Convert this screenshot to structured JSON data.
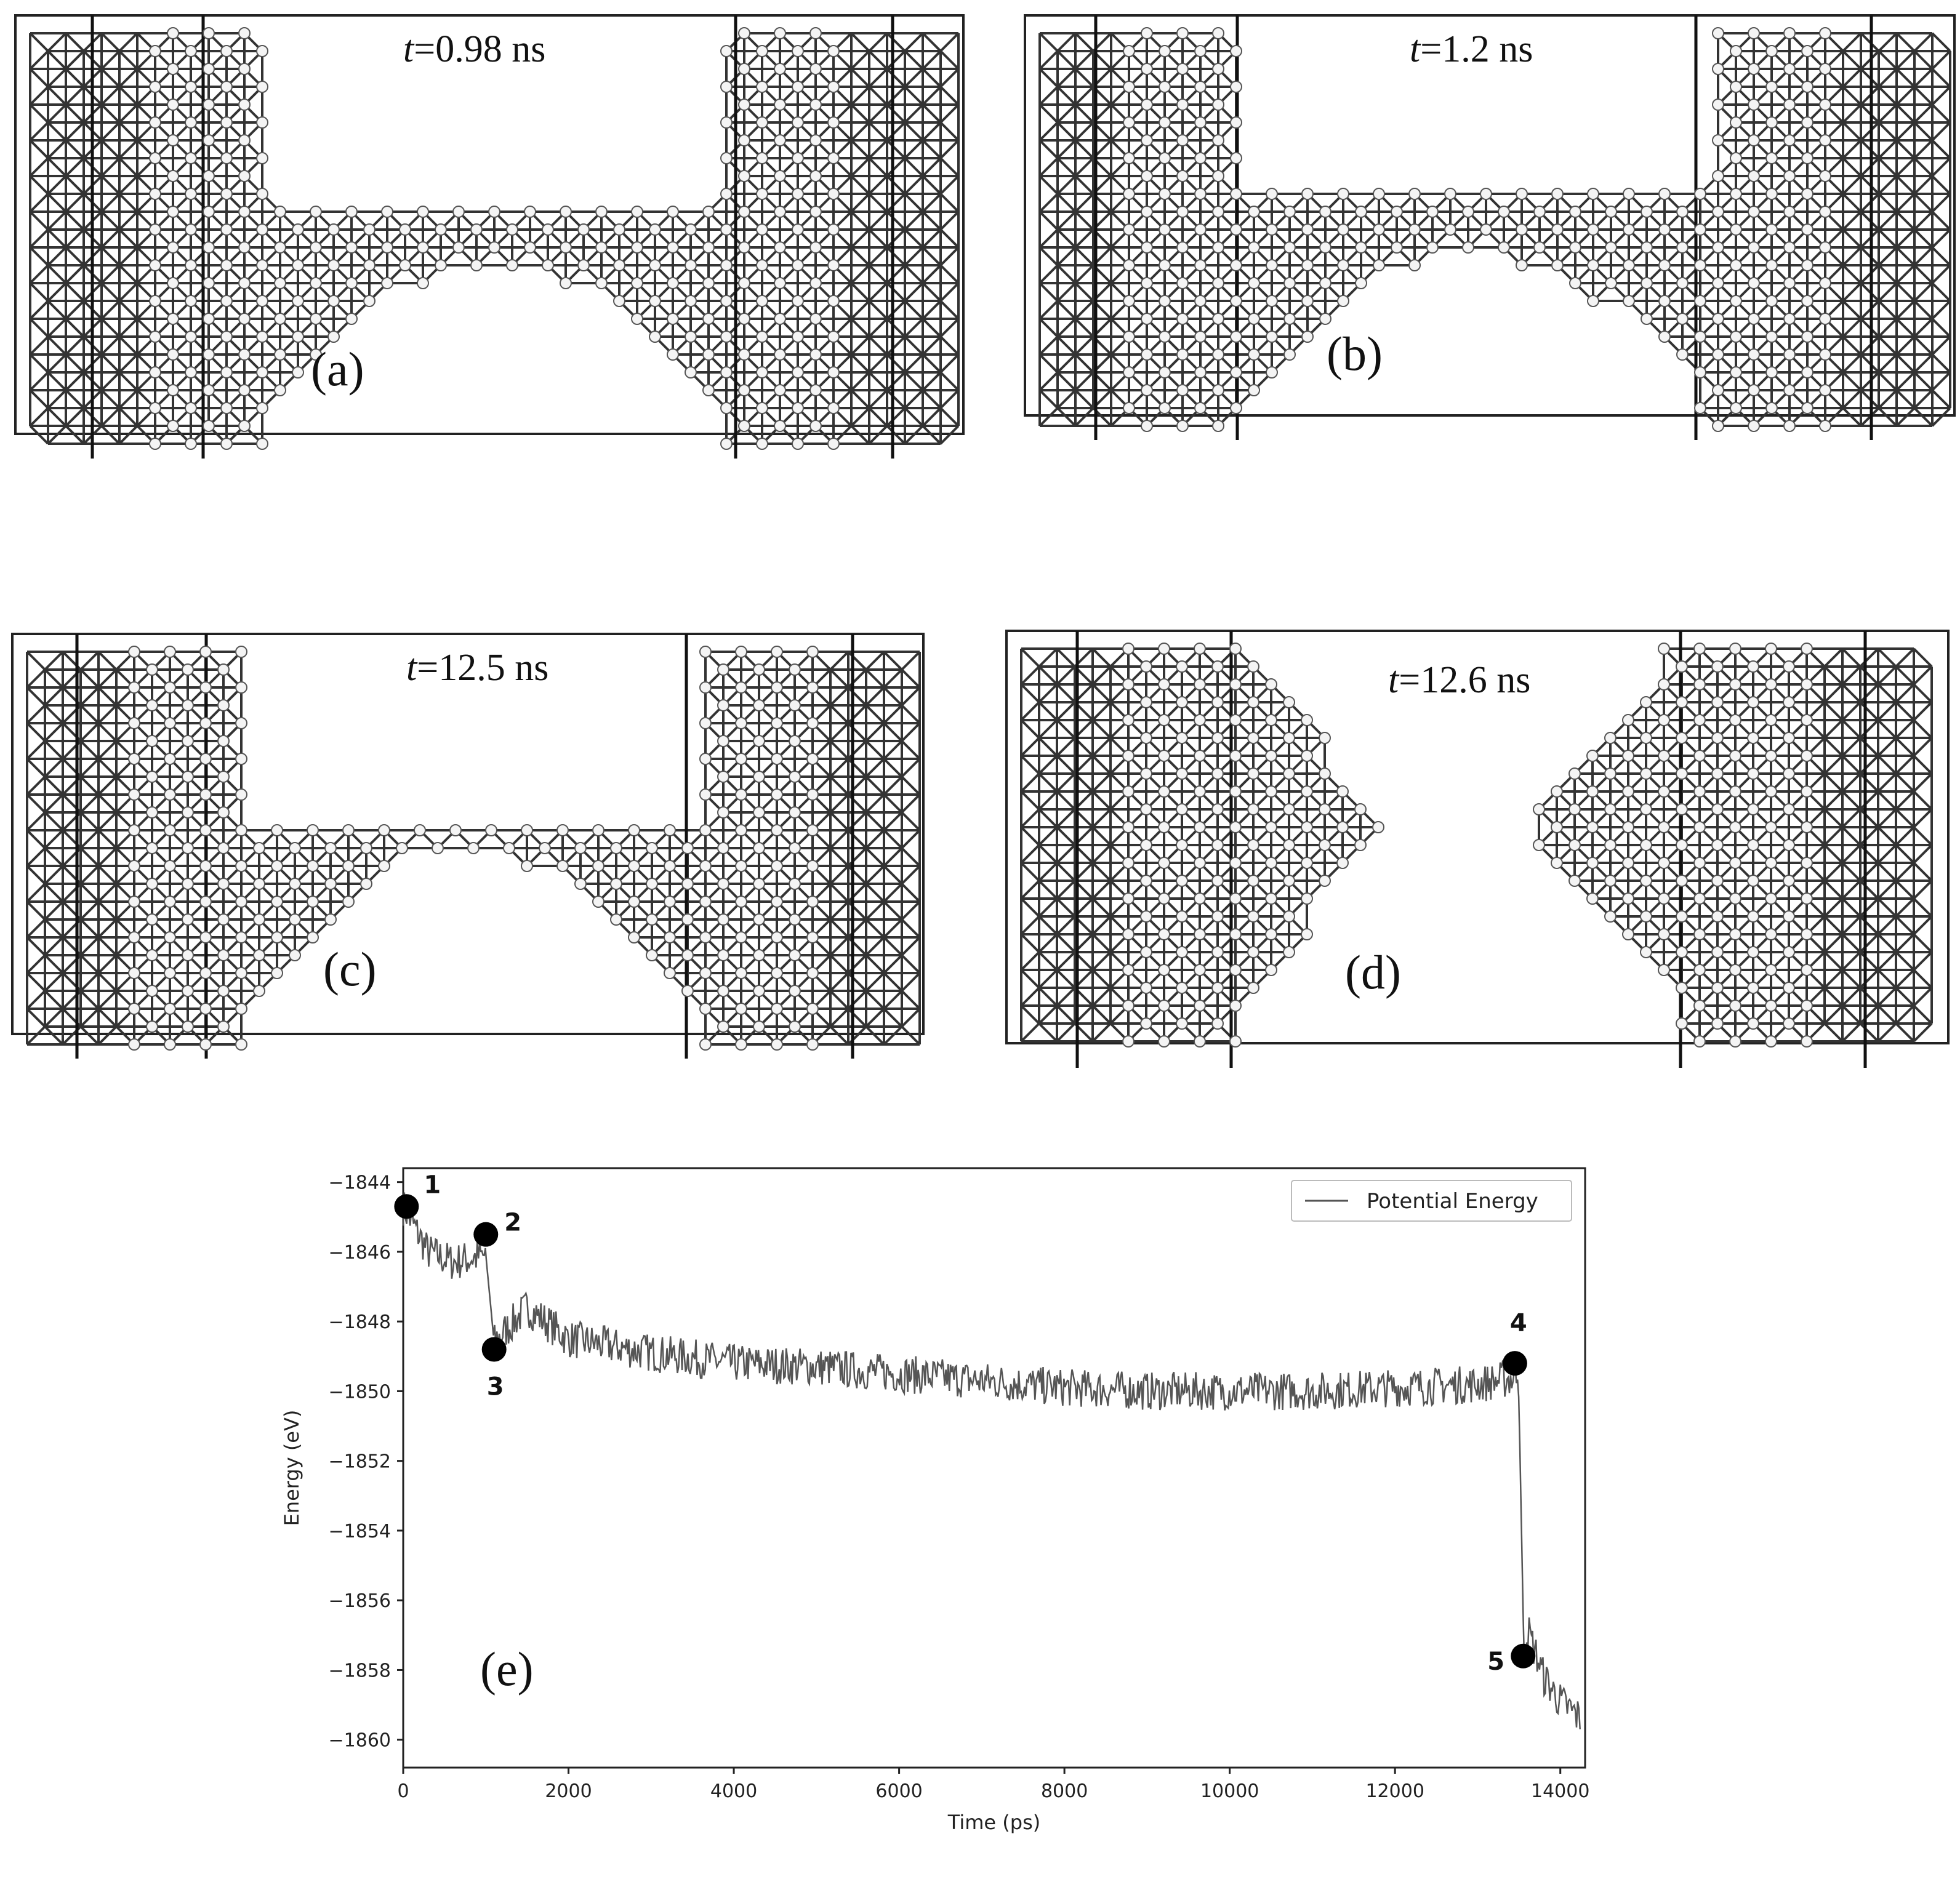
{
  "panels": [
    {
      "id": "a",
      "time_italic": "t",
      "time_rest": "=0.98 ns",
      "label": "(a)"
    },
    {
      "id": "b",
      "time_italic": "t",
      "time_rest": "=1.2 ns",
      "label": "(b)"
    },
    {
      "id": "c",
      "time_italic": "t",
      "time_rest": "=12.5 ns",
      "label": "(c)"
    },
    {
      "id": "d",
      "time_italic": "t",
      "time_rest": "=12.6 ns",
      "label": "(d)"
    }
  ],
  "chart_data": {
    "type": "line",
    "panel_label": "(e)",
    "xlabel": "Time (ps)",
    "ylabel": "Energy (eV)",
    "xlim": [
      0,
      14300
    ],
    "ylim": [
      -1860.8,
      -1843.6
    ],
    "xticks": [
      0,
      2000,
      4000,
      6000,
      8000,
      10000,
      12000,
      14000
    ],
    "yticks": [
      -1844,
      -1846,
      -1848,
      -1850,
      -1852,
      -1854,
      -1856,
      -1858,
      -1860
    ],
    "legend": {
      "position": "top-right",
      "entries": [
        "Potential Energy"
      ]
    },
    "grid": false,
    "series": [
      {
        "name": "Potential Energy",
        "color": "#555555",
        "x": [
          0,
          300,
          600,
          1000,
          1100,
          1500,
          2000,
          3000,
          4000,
          5000,
          6000,
          7000,
          8000,
          9000,
          10000,
          11000,
          12000,
          13000,
          13480,
          13500,
          13560,
          13600,
          13800,
          14000,
          14250
        ],
        "y": [
          -1844.7,
          -1846.0,
          -1846.3,
          -1846.1,
          -1848.6,
          -1847.6,
          -1848.5,
          -1848.9,
          -1849.2,
          -1849.3,
          -1849.5,
          -1849.7,
          -1849.9,
          -1850.0,
          -1850.0,
          -1850.0,
          -1849.9,
          -1849.8,
          -1849.6,
          -1850.3,
          -1857.6,
          -1856.8,
          -1858.2,
          -1858.9,
          -1859.4
        ]
      }
    ],
    "markers": [
      {
        "label": "1",
        "x": 40,
        "y": -1844.7
      },
      {
        "label": "2",
        "x": 1000,
        "y": -1845.5
      },
      {
        "label": "3",
        "x": 1100,
        "y": -1848.8
      },
      {
        "label": "4",
        "x": 13450,
        "y": -1849.2
      },
      {
        "label": "5",
        "x": 13550,
        "y": -1857.6
      }
    ]
  }
}
